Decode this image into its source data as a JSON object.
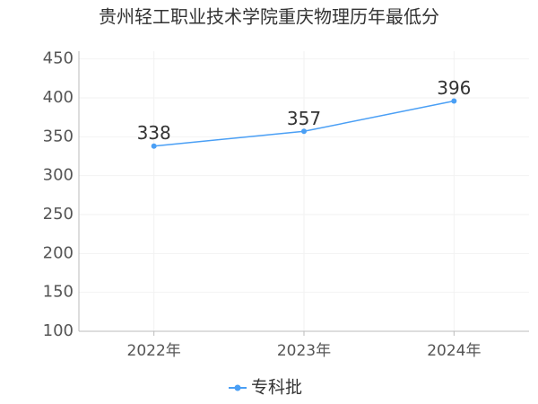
{
  "chart_data": {
    "type": "line",
    "title": "贵州轻工职业技术学院重庆物理历年最低分",
    "categories": [
      "2022年",
      "2023年",
      "2024年"
    ],
    "series": [
      {
        "name": "专科批",
        "color": "#4a9ff5",
        "values": [
          338,
          357,
          396
        ]
      }
    ],
    "ylim": [
      100,
      460
    ],
    "yticks": [
      100,
      150,
      200,
      250,
      300,
      350,
      400,
      450
    ],
    "grid": true,
    "legend": "bottom"
  }
}
